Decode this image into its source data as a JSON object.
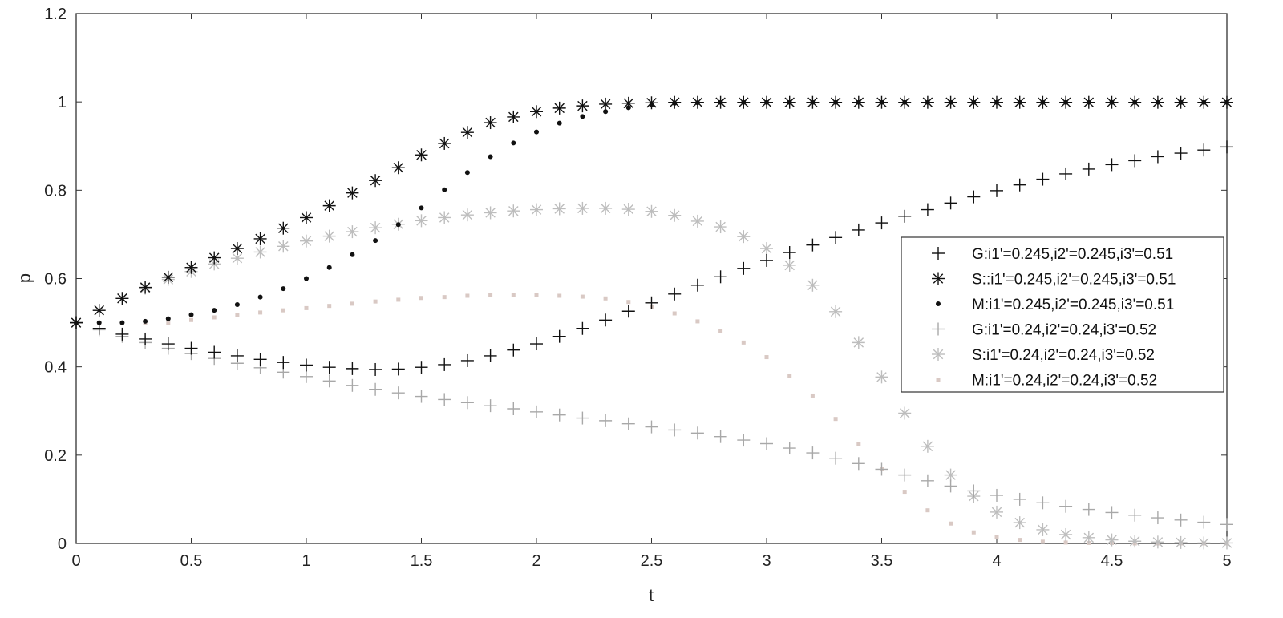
{
  "chart_data": {
    "type": "scatter",
    "xlabel": "t",
    "ylabel": "p",
    "xlim": [
      0,
      5
    ],
    "ylim": [
      0,
      1.2
    ],
    "xticks": [
      "0",
      "0.5",
      "1",
      "1.5",
      "2",
      "2.5",
      "3",
      "3.5",
      "4",
      "4.5",
      "5"
    ],
    "yticks": [
      "0",
      "0.2",
      "0.4",
      "0.6",
      "0.8",
      "1",
      "1.2"
    ],
    "grid": false,
    "legend_position": "right-middle",
    "x": [
      0,
      0.1,
      0.2,
      0.3,
      0.4,
      0.5,
      0.6,
      0.7,
      0.8,
      0.9,
      1.0,
      1.1,
      1.2,
      1.3,
      1.4,
      1.5,
      1.6,
      1.7,
      1.8,
      1.9,
      2.0,
      2.1,
      2.2,
      2.3,
      2.4,
      2.5,
      2.6,
      2.7,
      2.8,
      2.9,
      3.0,
      3.1,
      3.2,
      3.3,
      3.4,
      3.5,
      3.6,
      3.7,
      3.8,
      3.9,
      4.0,
      4.1,
      4.2,
      4.3,
      4.4,
      4.5,
      4.6,
      4.7,
      4.8,
      4.9,
      5.0
    ],
    "series": [
      {
        "name": "G:i1'=0.245,i2'=0.245,i3'=0.51",
        "marker": "plus",
        "color": "#111111",
        "values": [
          0.5,
          0.487,
          0.474,
          0.463,
          0.452,
          0.442,
          0.433,
          0.425,
          0.417,
          0.41,
          0.404,
          0.399,
          0.396,
          0.394,
          0.395,
          0.399,
          0.405,
          0.414,
          0.425,
          0.438,
          0.452,
          0.469,
          0.487,
          0.506,
          0.526,
          0.545,
          0.565,
          0.585,
          0.604,
          0.623,
          0.641,
          0.659,
          0.676,
          0.693,
          0.71,
          0.726,
          0.741,
          0.756,
          0.771,
          0.785,
          0.799,
          0.812,
          0.825,
          0.837,
          0.848,
          0.858,
          0.867,
          0.876,
          0.884,
          0.891,
          0.898
        ]
      },
      {
        "name": "S::i1'=0.245,i2'=0.245,i3'=0.51",
        "marker": "star",
        "color": "#111111",
        "values": [
          0.5,
          0.528,
          0.555,
          0.58,
          0.603,
          0.625,
          0.647,
          0.668,
          0.69,
          0.714,
          0.738,
          0.765,
          0.794,
          0.822,
          0.851,
          0.88,
          0.906,
          0.931,
          0.953,
          0.966,
          0.978,
          0.986,
          0.991,
          0.995,
          0.997,
          0.998,
          0.999,
          0.999,
          0.999,
          0.999,
          0.999,
          0.999,
          0.999,
          0.999,
          0.999,
          0.999,
          0.999,
          0.999,
          0.999,
          0.999,
          0.999,
          0.999,
          0.999,
          0.999,
          0.999,
          0.999,
          0.999,
          0.999,
          0.999,
          0.999,
          0.999
        ]
      },
      {
        "name": "M:i1'=0.245,i2'=0.245,i3'=0.51",
        "marker": "dot",
        "color": "#111111",
        "values": [
          0.5,
          0.5,
          0.5,
          0.503,
          0.509,
          0.518,
          0.528,
          0.541,
          0.558,
          0.577,
          0.6,
          0.625,
          0.654,
          0.686,
          0.722,
          0.76,
          0.801,
          0.84,
          0.876,
          0.907,
          0.932,
          0.952,
          0.967,
          0.978,
          0.987,
          0.993,
          0.997,
          0.998,
          0.999,
          0.999,
          0.999,
          0.999,
          0.999,
          0.999,
          0.999,
          0.999,
          0.999,
          0.999,
          0.999,
          0.999,
          0.999,
          0.999,
          0.999,
          0.999,
          0.999,
          0.999,
          0.999,
          0.999,
          0.999,
          0.999,
          0.999
        ]
      },
      {
        "name": "G:i1'=0.24,i2'=0.24,i3'=0.52",
        "marker": "plus",
        "color": "#a8a8a8",
        "values": [
          0.5,
          0.484,
          0.469,
          0.455,
          0.442,
          0.43,
          0.419,
          0.408,
          0.398,
          0.388,
          0.378,
          0.368,
          0.358,
          0.349,
          0.341,
          0.333,
          0.326,
          0.319,
          0.312,
          0.305,
          0.298,
          0.291,
          0.284,
          0.278,
          0.271,
          0.264,
          0.257,
          0.25,
          0.242,
          0.234,
          0.226,
          0.216,
          0.205,
          0.193,
          0.181,
          0.168,
          0.155,
          0.142,
          0.13,
          0.119,
          0.109,
          0.1,
          0.092,
          0.084,
          0.077,
          0.07,
          0.064,
          0.058,
          0.053,
          0.048,
          0.043
        ]
      },
      {
        "name": "S:i1'=0.24,i2'=0.24,i3'=0.52",
        "marker": "star",
        "color": "#bdbdbd",
        "values": [
          0.5,
          0.528,
          0.555,
          0.578,
          0.598,
          0.616,
          0.633,
          0.646,
          0.66,
          0.673,
          0.685,
          0.696,
          0.706,
          0.715,
          0.723,
          0.731,
          0.738,
          0.744,
          0.749,
          0.753,
          0.756,
          0.758,
          0.759,
          0.759,
          0.757,
          0.752,
          0.743,
          0.73,
          0.717,
          0.695,
          0.668,
          0.63,
          0.585,
          0.525,
          0.455,
          0.377,
          0.295,
          0.22,
          0.155,
          0.107,
          0.071,
          0.047,
          0.031,
          0.02,
          0.013,
          0.008,
          0.005,
          0.003,
          0.002,
          0.001,
          0.001
        ]
      },
      {
        "name": "M:i1'=0.24,i2'=0.24,i3'=0.52",
        "marker": "square",
        "color": "#d9c9c4",
        "values": [
          0.5,
          0.5,
          0.5,
          0.5,
          0.5,
          0.506,
          0.512,
          0.518,
          0.523,
          0.528,
          0.533,
          0.538,
          0.543,
          0.548,
          0.552,
          0.556,
          0.558,
          0.561,
          0.563,
          0.563,
          0.562,
          0.561,
          0.559,
          0.555,
          0.547,
          0.535,
          0.521,
          0.503,
          0.481,
          0.455,
          0.422,
          0.38,
          0.335,
          0.282,
          0.225,
          0.168,
          0.117,
          0.075,
          0.045,
          0.025,
          0.014,
          0.008,
          0.004,
          0.002,
          0.001,
          0.001,
          0.0,
          0.0,
          0.0,
          0.0,
          0.0
        ]
      }
    ]
  }
}
